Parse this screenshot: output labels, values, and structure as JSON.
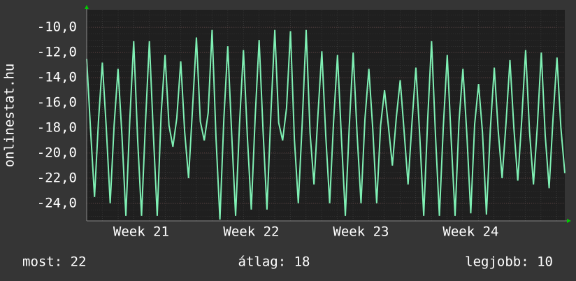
{
  "chart_data": {
    "type": "line",
    "y_label": "onlinestat.hu",
    "color": "#7ff0b4",
    "values": [
      -12.5,
      -18.2,
      -23.5,
      -17.5,
      -12.8,
      -18.0,
      -24.0,
      -17.8,
      -13.3,
      -18.6,
      -25.0,
      -17.4,
      -11.1,
      -18.9,
      -25.0,
      -17.6,
      -11.1,
      -18.4,
      -25.0,
      -16.9,
      -12.2,
      -17.8,
      -19.5,
      -17.2,
      -12.7,
      -18.3,
      -22.0,
      -16.5,
      -10.8,
      -17.5,
      -19.0,
      -16.8,
      -10.2,
      -18.8,
      -25.3,
      -17.3,
      -11.5,
      -18.5,
      -25.0,
      -17.7,
      -11.8,
      -18.7,
      -24.5,
      -17.1,
      -11.0,
      -18.2,
      -24.5,
      -16.9,
      -10.2,
      -17.6,
      -19.0,
      -16.4,
      -10.3,
      -18.9,
      -24.0,
      -17.6,
      -10.2,
      -18.4,
      -22.5,
      -17.0,
      -11.9,
      -18.6,
      -24.0,
      -17.5,
      -12.2,
      -18.8,
      -25.0,
      -17.9,
      -12.0,
      -18.5,
      -24.0,
      -17.3,
      -13.3,
      -18.1,
      -24.0,
      -17.8,
      -15.0,
      -17.9,
      -21.0,
      -17.2,
      -14.2,
      -18.3,
      -22.5,
      -17.6,
      -13.2,
      -18.7,
      -25.0,
      -17.4,
      -11.1,
      -18.6,
      -25.0,
      -17.9,
      -12.2,
      -18.9,
      -25.0,
      -17.5,
      -13.3,
      -18.5,
      -24.8,
      -17.7,
      -14.5,
      -18.4,
      -24.9,
      -18.1,
      -13.2,
      -18.2,
      -22.0,
      -17.6,
      -12.6,
      -18.0,
      -22.2,
      -17.4,
      -11.8,
      -18.3,
      -22.5,
      -17.8,
      -12.0,
      -18.6,
      -22.8,
      -17.2,
      -12.4,
      -18.0,
      -21.6
    ],
    "xlim": [
      0,
      122
    ],
    "xticks": [
      {
        "value": 13.9,
        "label": "Week 21"
      },
      {
        "value": 42,
        "label": "Week 22"
      },
      {
        "value": 70,
        "label": "Week 23"
      },
      {
        "value": 98,
        "label": "Week 24"
      }
    ],
    "ylim": [
      -25.4,
      -8.6
    ],
    "yticks": [
      {
        "value": -10,
        "label": "-10,0"
      },
      {
        "value": -12,
        "label": "-12,0"
      },
      {
        "value": -14,
        "label": "-14,0"
      },
      {
        "value": -16,
        "label": "-16,0"
      },
      {
        "value": -18,
        "label": "-18,0"
      },
      {
        "value": -20,
        "label": "-20,0"
      },
      {
        "value": -22,
        "label": "-22,0"
      },
      {
        "value": -24,
        "label": "-24,0"
      }
    ],
    "grid": true,
    "footer": {
      "current": "most: 22",
      "average": "átlag: 18",
      "best": "legjobb: 10"
    }
  }
}
